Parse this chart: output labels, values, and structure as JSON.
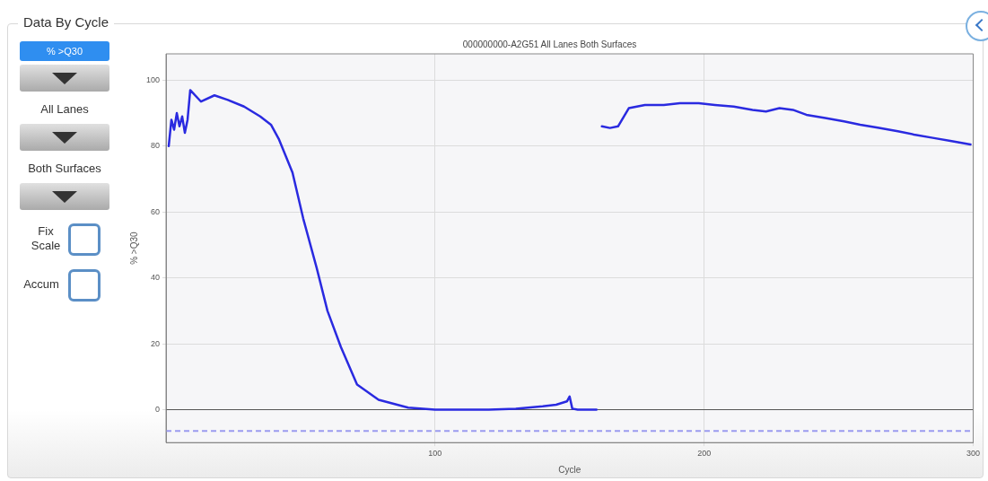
{
  "chart_data": {
    "type": "line",
    "title": "000000000-A2G51 All Lanes Both Surfaces",
    "xlabel": "Cycle",
    "ylabel": "% >Q30",
    "annotations": [
      "Data By Cycle",
      "% >Q30",
      "All Lanes",
      "Both Surfaces",
      "Fix Scale",
      "Accum"
    ],
    "series": [
      {
        "color": "#2a2ae0",
        "x": [
          1,
          2,
          3,
          4,
          5,
          6,
          7,
          8,
          9,
          13,
          18,
          23,
          29,
          35,
          39,
          42,
          47,
          51,
          56,
          60,
          65,
          71,
          79,
          90,
          100,
          110,
          120,
          130,
          140,
          145,
          149,
          150,
          151,
          153,
          156,
          160,
          161,
          162,
          165,
          168,
          172,
          178,
          185,
          191,
          198,
          204,
          211,
          218,
          223,
          228,
          233,
          238,
          245,
          252,
          258,
          265,
          272,
          278,
          285,
          292,
          299
        ],
        "values": [
          80,
          88,
          85,
          90,
          86,
          89,
          84,
          88,
          97,
          93.5,
          95.4,
          94,
          92,
          89,
          86.5,
          82,
          72,
          58,
          43,
          30,
          19,
          7.6,
          3,
          0.6,
          0,
          0,
          0,
          0.3,
          1,
          1.5,
          2.5,
          4,
          0.3,
          0,
          0,
          0,
          null,
          86,
          85.5,
          86,
          91.5,
          92.5,
          92.5,
          93,
          93,
          92.5,
          92,
          91,
          90.5,
          91.5,
          91,
          89.5,
          88.5,
          87.5,
          86.5,
          85.5,
          84.5,
          83.5,
          82.5,
          81.5,
          80.5
        ]
      }
    ],
    "xlim": [
      0,
      300
    ],
    "xticks": [
      100,
      200,
      300
    ],
    "ylim": [
      -10,
      108
    ],
    "yticks": [
      0,
      20,
      40,
      60,
      80,
      100
    ],
    "ref_lines": [
      {
        "axis": "y",
        "value": 0,
        "color": "#555555",
        "line_style": "solid"
      },
      {
        "axis": "y",
        "value": -6.5,
        "color": "#9b9bef",
        "line_style": "dashed"
      }
    ],
    "grid": true,
    "legend": false,
    "marker": "none",
    "line_style": "solid"
  }
}
